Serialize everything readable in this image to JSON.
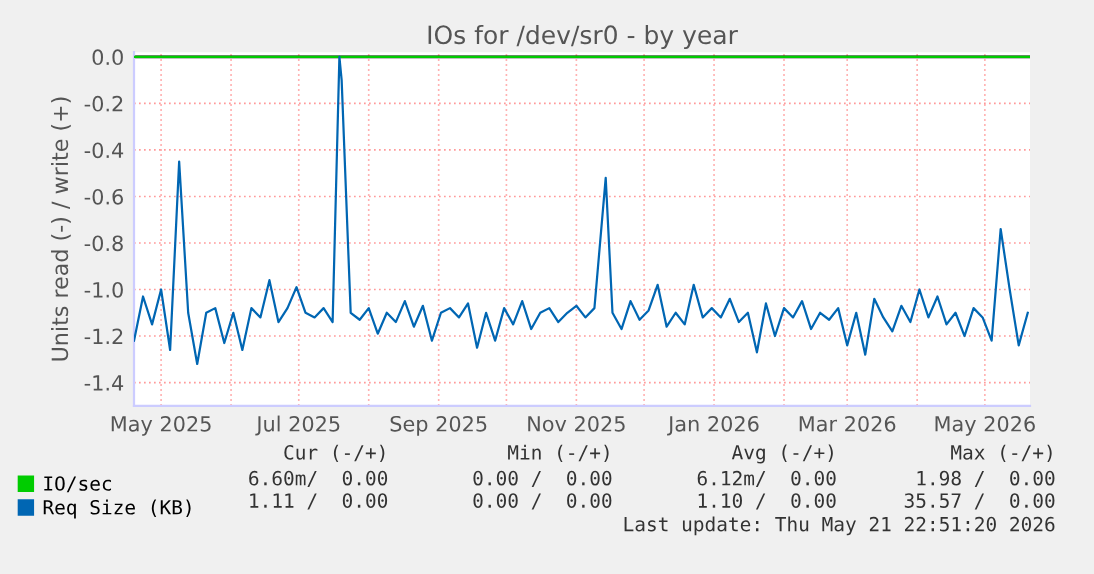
{
  "chart_data": {
    "type": "line",
    "title": "IOs for /dev/sr0 - by year",
    "ylabel": "Units read (-) / write (+)",
    "x": [
      "2025-04-19",
      "2025-04-23",
      "2025-04-27",
      "2025-05-01",
      "2025-05-05",
      "2025-05-09",
      "2025-05-13",
      "2025-05-17",
      "2025-05-21",
      "2025-05-25",
      "2025-05-29",
      "2025-06-02",
      "2025-06-06",
      "2025-06-10",
      "2025-06-14",
      "2025-06-18",
      "2025-06-22",
      "2025-06-26",
      "2025-06-30",
      "2025-07-04",
      "2025-07-08",
      "2025-07-12",
      "2025-07-16",
      "2025-07-19",
      "2025-07-20",
      "2025-07-24",
      "2025-07-28",
      "2025-08-01",
      "2025-08-05",
      "2025-08-09",
      "2025-08-13",
      "2025-08-17",
      "2025-08-21",
      "2025-08-25",
      "2025-08-29",
      "2025-09-02",
      "2025-09-06",
      "2025-09-10",
      "2025-09-14",
      "2025-09-18",
      "2025-09-22",
      "2025-09-26",
      "2025-09-30",
      "2025-10-04",
      "2025-10-08",
      "2025-10-12",
      "2025-10-16",
      "2025-10-20",
      "2025-10-24",
      "2025-10-28",
      "2025-11-01",
      "2025-11-05",
      "2025-11-09",
      "2025-11-14",
      "2025-11-17",
      "2025-11-21",
      "2025-11-25",
      "2025-11-29",
      "2025-12-03",
      "2025-12-07",
      "2025-12-11",
      "2025-12-15",
      "2025-12-19",
      "2025-12-23",
      "2025-12-27",
      "2025-12-31",
      "2026-01-04",
      "2026-01-08",
      "2026-01-12",
      "2026-01-16",
      "2026-01-20",
      "2026-01-24",
      "2026-01-28",
      "2026-02-01",
      "2026-02-05",
      "2026-02-09",
      "2026-02-13",
      "2026-02-17",
      "2026-02-21",
      "2026-02-25",
      "2026-03-01",
      "2026-03-05",
      "2026-03-09",
      "2026-03-13",
      "2026-03-17",
      "2026-03-21",
      "2026-03-25",
      "2026-03-29",
      "2026-04-02",
      "2026-04-06",
      "2026-04-10",
      "2026-04-14",
      "2026-04-18",
      "2026-04-22",
      "2026-04-26",
      "2026-04-30",
      "2026-05-04",
      "2026-05-08",
      "2026-05-12",
      "2026-05-16",
      "2026-05-20"
    ],
    "series": [
      {
        "name": "IO/sec",
        "color": "#00cc00",
        "x": [
          "2025-04-19",
          "2026-05-21"
        ],
        "values": [
          0.0,
          0.0
        ]
      },
      {
        "name": "Req Size (KB)",
        "color": "#0066b3",
        "values": [
          -1.22,
          -1.03,
          -1.15,
          -1.0,
          -1.26,
          -0.45,
          -1.1,
          -1.32,
          -1.1,
          -1.08,
          -1.23,
          -1.1,
          -1.26,
          -1.08,
          -1.12,
          -0.96,
          -1.14,
          -1.08,
          -0.99,
          -1.1,
          -1.12,
          -1.08,
          -1.14,
          0.0,
          -0.1,
          -1.1,
          -1.13,
          -1.08,
          -1.19,
          -1.1,
          -1.14,
          -1.05,
          -1.16,
          -1.07,
          -1.22,
          -1.1,
          -1.08,
          -1.12,
          -1.06,
          -1.25,
          -1.1,
          -1.22,
          -1.08,
          -1.15,
          -1.05,
          -1.17,
          -1.1,
          -1.08,
          -1.14,
          -1.1,
          -1.07,
          -1.12,
          -1.08,
          -0.52,
          -1.1,
          -1.17,
          -1.05,
          -1.13,
          -1.09,
          -0.98,
          -1.16,
          -1.1,
          -1.15,
          -0.98,
          -1.12,
          -1.08,
          -1.12,
          -1.04,
          -1.14,
          -1.1,
          -1.27,
          -1.06,
          -1.2,
          -1.08,
          -1.12,
          -1.05,
          -1.17,
          -1.1,
          -1.13,
          -1.08,
          -1.24,
          -1.1,
          -1.28,
          -1.04,
          -1.12,
          -1.18,
          -1.07,
          -1.14,
          -1.0,
          -1.12,
          -1.03,
          -1.15,
          -1.1,
          -1.2,
          -1.08,
          -1.12,
          -1.22,
          -0.74,
          -1.0,
          -1.24,
          -1.1
        ]
      }
    ],
    "xlim": [
      "2025-04-19",
      "2026-05-21"
    ],
    "xticks": [
      {
        "value": "2025-05-01",
        "label": "May 2025"
      },
      {
        "value": "2025-06-01",
        "label": null
      },
      {
        "value": "2025-07-01",
        "label": "Jul 2025"
      },
      {
        "value": "2025-08-01",
        "label": null
      },
      {
        "value": "2025-09-01",
        "label": "Sep 2025"
      },
      {
        "value": "2025-10-01",
        "label": null
      },
      {
        "value": "2025-11-01",
        "label": "Nov 2025"
      },
      {
        "value": "2025-12-01",
        "label": null
      },
      {
        "value": "2026-01-01",
        "label": "Jan 2026"
      },
      {
        "value": "2026-02-01",
        "label": null
      },
      {
        "value": "2026-03-01",
        "label": "Mar 2026"
      },
      {
        "value": "2026-04-01",
        "label": null
      },
      {
        "value": "2026-05-01",
        "label": "May 2026"
      }
    ],
    "ylim": [
      -1.5,
      0.02
    ],
    "yticks": [
      {
        "value": 0,
        "label": "0.0"
      },
      {
        "value": -0.2,
        "label": "-0.2"
      },
      {
        "value": -0.4,
        "label": "-0.4"
      },
      {
        "value": -0.6,
        "label": "-0.6"
      },
      {
        "value": -0.8,
        "label": "-0.8"
      },
      {
        "value": -1.0,
        "label": "-1.0"
      },
      {
        "value": -1.2,
        "label": "-1.2"
      },
      {
        "value": -1.4,
        "label": "-1.4"
      }
    ],
    "ref_lines": [
      {
        "axis": "y",
        "value": 0,
        "color": "#000000"
      }
    ],
    "grid": true,
    "legend": "bottom",
    "marker": "none",
    "line_style": "solid",
    "annotations": [
      "Cur (-/+)",
      "Min (-/+)",
      "Avg (-/+)",
      "Max (-/+)",
      "6.60m/  0.00",
      "0.00 /  0.00",
      "6.12m/  0.00",
      "1.98 /  0.00",
      "1.11 /  0.00",
      "0.00 /  0.00",
      "1.10 /  0.00",
      "35.57 /  0.00",
      "Last update: Thu May 21 22:51:20 2026"
    ]
  }
}
